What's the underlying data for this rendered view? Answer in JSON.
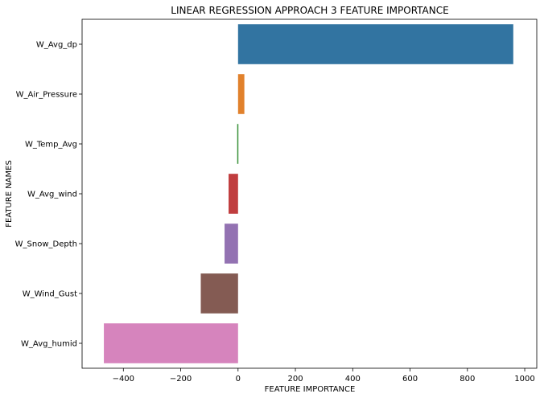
{
  "chart_data": {
    "type": "bar",
    "orientation": "horizontal",
    "title": "LINEAR REGRESSION APPROACH 3 FEATURE IMPORTANCE",
    "xlabel": "FEATURE IMPORTANCE",
    "ylabel": "FEATURE NAMES",
    "categories": [
      "W_Avg_dp",
      "W_Air_Pressure",
      "W_Temp_Avg",
      "W_Avg_wind",
      "W_Snow_Depth",
      "W_Wind_Gust",
      "W_Avg_humid"
    ],
    "values": [
      960,
      22,
      -3,
      -33,
      -47,
      -130,
      -468
    ],
    "colors": [
      "#3274a1",
      "#e1812c",
      "#3a923a",
      "#c03d3e",
      "#9372b2",
      "#845b53",
      "#d684bd"
    ],
    "xlim": [
      -544,
      1042
    ],
    "xticks": [
      -400,
      -200,
      0,
      200,
      400,
      600,
      800,
      1000
    ],
    "xtick_labels": [
      "−400",
      "−200",
      "0",
      "200",
      "400",
      "600",
      "800",
      "1000"
    ],
    "grid": false,
    "legend": "none"
  }
}
